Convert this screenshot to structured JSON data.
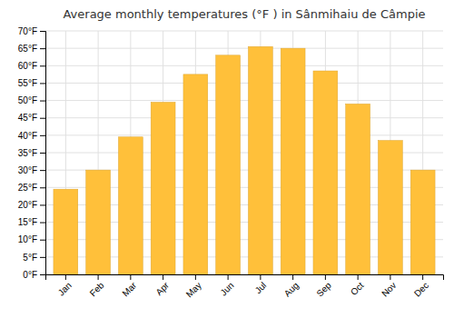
{
  "chart_data": {
    "type": "bar",
    "title": "Average monthly temperatures (°F ) in Sânmihaiu de Câmpie",
    "categories": [
      "Jan",
      "Feb",
      "Mar",
      "Apr",
      "May",
      "Jun",
      "Jul",
      "Aug",
      "Sep",
      "Oct",
      "Nov",
      "Dec"
    ],
    "values": [
      24.5,
      30.0,
      39.5,
      49.5,
      57.5,
      63.0,
      65.5,
      65.0,
      58.5,
      49.0,
      38.5,
      30.0
    ],
    "color": "#FFC03A",
    "ylim": [
      0,
      70
    ],
    "yticks": [
      {
        "value": 0,
        "label": "0°F"
      },
      {
        "value": 5,
        "label": "5°F"
      },
      {
        "value": 10,
        "label": "10°F"
      },
      {
        "value": 15,
        "label": "15°F"
      },
      {
        "value": 20,
        "label": "20°F"
      },
      {
        "value": 25,
        "label": "25°F"
      },
      {
        "value": 30,
        "label": "30°F"
      },
      {
        "value": 35,
        "label": "35°F"
      },
      {
        "value": 40,
        "label": "40°F"
      },
      {
        "value": 45,
        "label": "45°F"
      },
      {
        "value": 50,
        "label": "50°F"
      },
      {
        "value": 55,
        "label": "55°F"
      },
      {
        "value": 60,
        "label": "60°F"
      },
      {
        "value": 65,
        "label": "65°F"
      },
      {
        "value": 70,
        "label": "70°F"
      }
    ],
    "grid": true
  }
}
